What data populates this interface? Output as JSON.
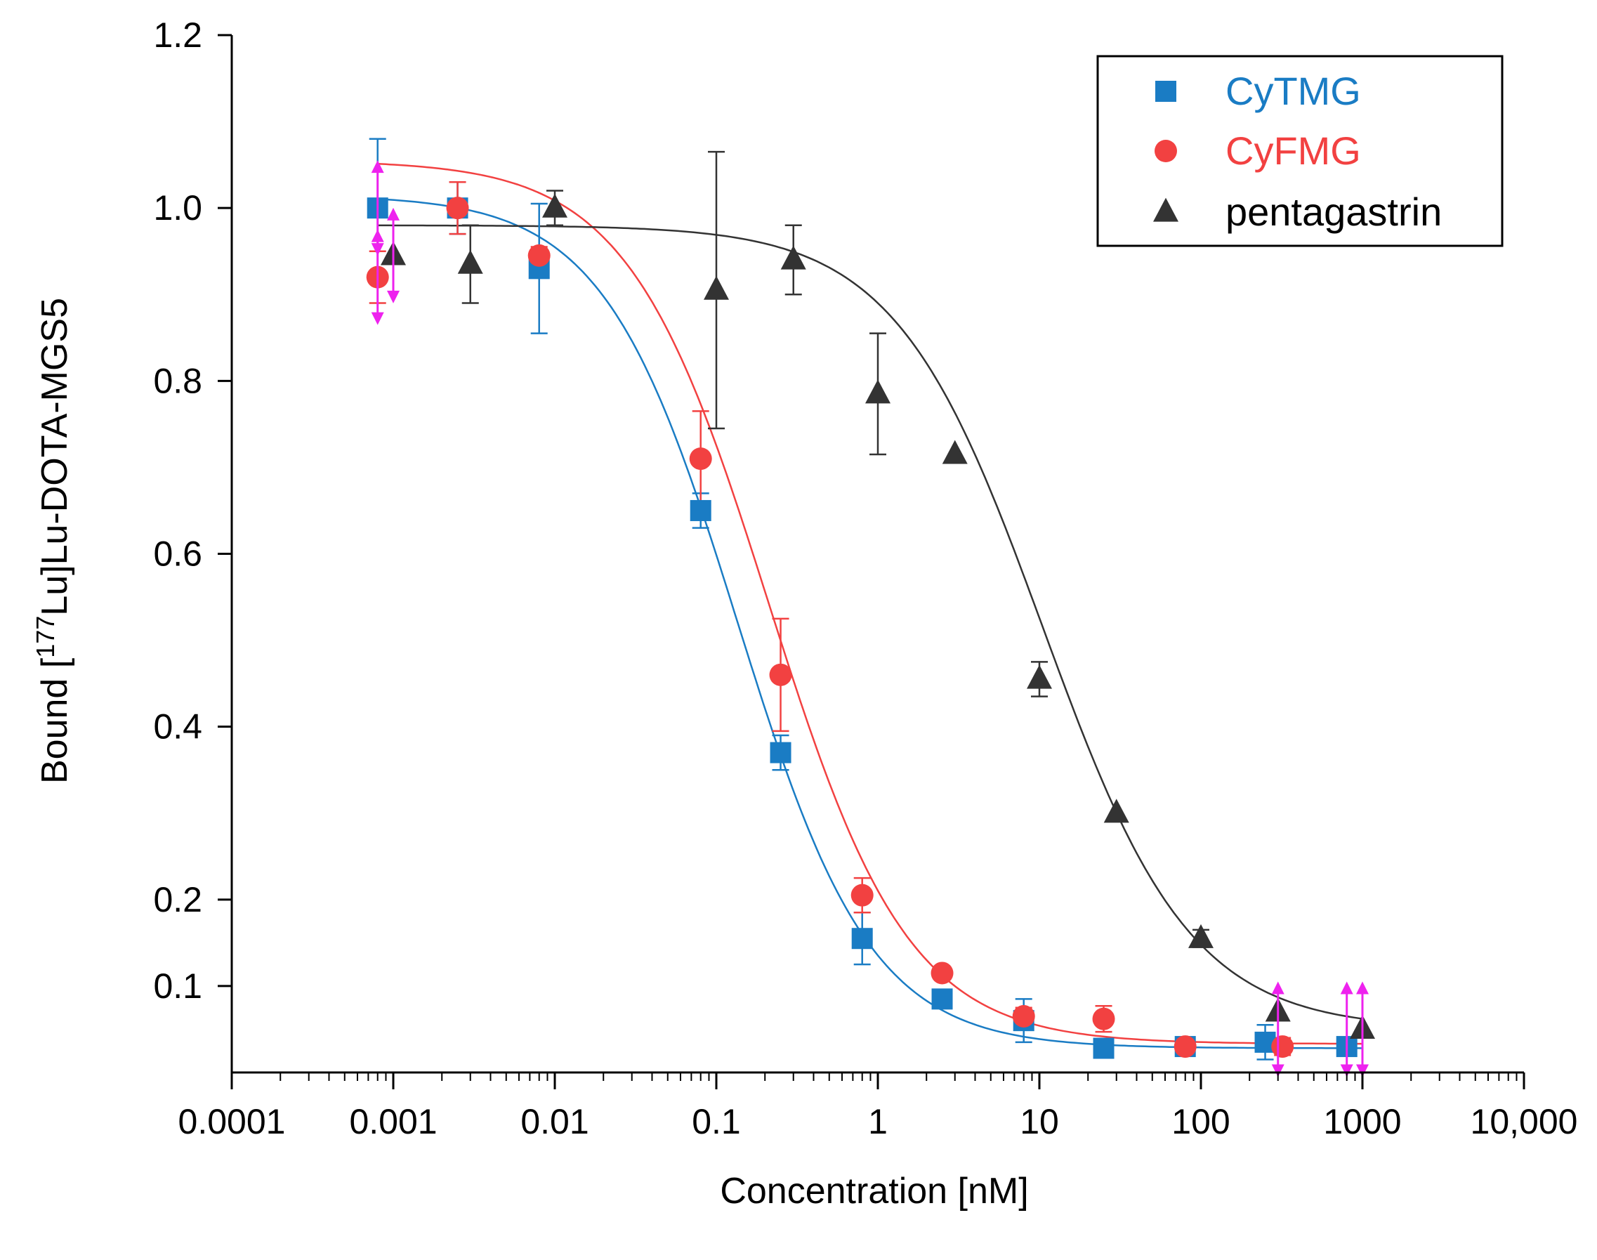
{
  "chart_data": {
    "type": "scatter",
    "title": "",
    "xlabel": "Concentration [nM]",
    "ylabel_parts": [
      "Bound [",
      "177",
      "Lu]Lu-DOTA-MGS5"
    ],
    "x_scale": "log",
    "xlim": [
      0.0001,
      10000
    ],
    "ylim": [
      0.0,
      1.2
    ],
    "x_ticks": [
      0.0001,
      0.001,
      0.01,
      0.1,
      1,
      10,
      100,
      1000,
      10000
    ],
    "x_tick_labels": [
      "0.0001",
      "0.001",
      "0.01",
      "0.1",
      "1",
      "10",
      "100",
      "1000",
      "10,000"
    ],
    "y_ticks": [
      0.1,
      0.2,
      0.4,
      0.6,
      0.8,
      1.0,
      1.2
    ],
    "y_tick_labels": [
      "0.1",
      "0.2",
      "0.4",
      "0.6",
      "0.8",
      "1.0",
      "1.2"
    ],
    "legend_position": "top-right",
    "series": [
      {
        "name": "CyTMG",
        "color": "#1a7cc4",
        "marker": "square",
        "x": [
          0.0008,
          0.0025,
          0.008,
          0.08,
          0.25,
          0.8,
          2.5,
          8,
          25,
          80,
          250,
          800
        ],
        "y": [
          1.0,
          1.0,
          0.93,
          0.65,
          0.37,
          0.155,
          0.085,
          0.06,
          0.028,
          0.03,
          0.035,
          0.03
        ],
        "err": [
          0.08,
          0.03,
          0.075,
          0.02,
          0.02,
          0.03,
          0.01,
          0.025,
          0.005,
          0.01,
          0.02,
          0.005
        ],
        "fit": {
          "top": 1.015,
          "bottom": 0.028,
          "ec50": 0.135,
          "hill": 1.05
        }
      },
      {
        "name": "CyFMG",
        "color": "#f24141",
        "marker": "circle",
        "x": [
          0.0008,
          0.0025,
          0.008,
          0.08,
          0.25,
          0.8,
          2.5,
          8,
          25,
          80,
          320
        ],
        "y": [
          0.92,
          1.0,
          0.945,
          0.71,
          0.46,
          0.205,
          0.115,
          0.065,
          0.062,
          0.03,
          0.03
        ],
        "err": [
          0.03,
          0.03,
          0.01,
          0.055,
          0.065,
          0.02,
          0.005,
          0.01,
          0.015,
          0.005,
          0.01
        ],
        "fit": {
          "top": 1.055,
          "bottom": 0.033,
          "ec50": 0.21,
          "hill": 1.0
        }
      },
      {
        "name": "pentagastrin",
        "color": "#333333",
        "marker": "triangle",
        "x": [
          0.001,
          0.003,
          0.01,
          0.1,
          0.3,
          1,
          3,
          10,
          30,
          100,
          300,
          1000
        ],
        "y": [
          0.945,
          0.935,
          1.0,
          0.905,
          0.94,
          0.785,
          0.715,
          0.455,
          0.3,
          0.155,
          0.07,
          0.05
        ],
        "err": [
          0.0,
          0.045,
          0.02,
          0.16,
          0.04,
          0.07,
          0.0,
          0.02,
          0.0,
          0.01,
          0.0,
          0.0
        ],
        "fit": {
          "top": 0.98,
          "bottom": 0.05,
          "ec50": 10.5,
          "hill": 0.95
        }
      }
    ],
    "highlight_arrows": {
      "color": "#ee22ee",
      "points": [
        [
          0.0008,
          0.92
        ],
        [
          0.0008,
          1.0
        ],
        [
          0.001,
          0.945
        ],
        [
          300,
          0.05
        ],
        [
          800,
          0.05
        ],
        [
          1000,
          0.05
        ]
      ]
    }
  }
}
